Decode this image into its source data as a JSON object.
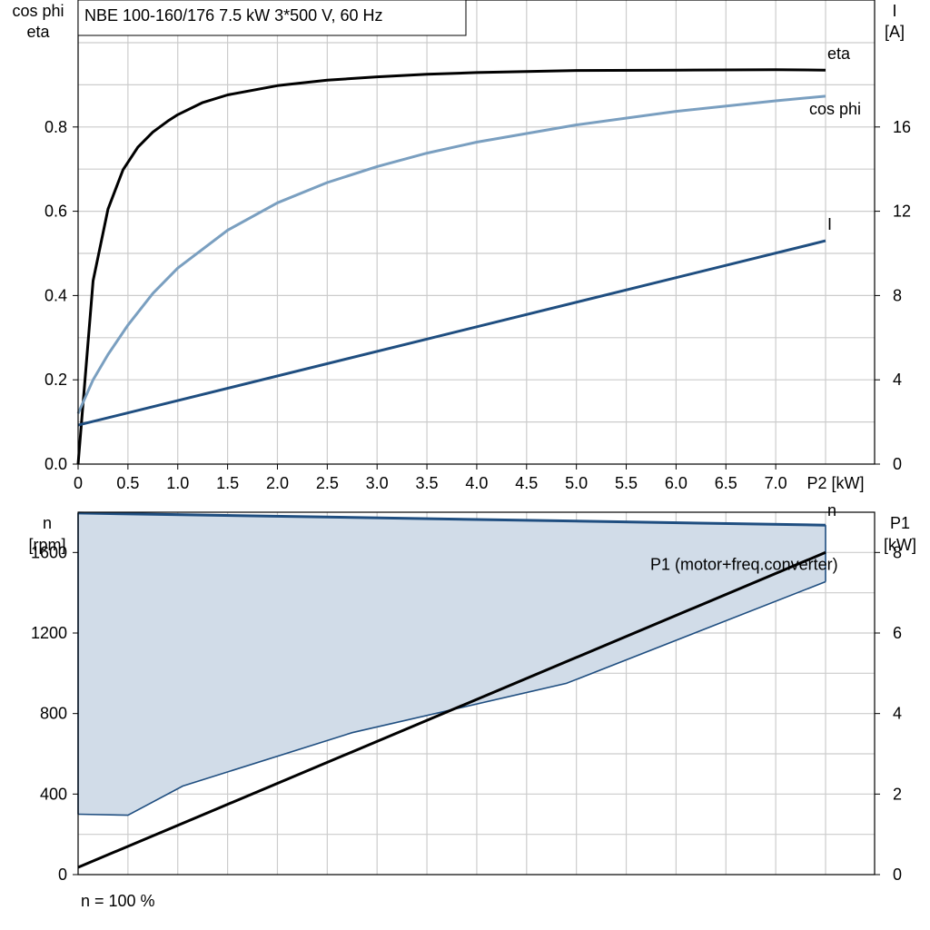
{
  "chart_data": [
    {
      "type": "line",
      "title": "NBE 100-160/176   7.5 kW   3*500 V, 60 Hz",
      "xlabel": "P2 [kW]",
      "y_left_label": [
        "cos phi",
        "eta"
      ],
      "y_right_label": [
        "I",
        "[A]"
      ],
      "xlim": [
        0,
        7.5
      ],
      "ylim_left": [
        0,
        1.0
      ],
      "ylim_right": [
        0,
        20
      ],
      "x_ticks": [
        "0",
        "0.5",
        "1.0",
        "1.5",
        "2.0",
        "2.5",
        "3.0",
        "3.5",
        "4.0",
        "4.5",
        "5.0",
        "5.5",
        "6.0",
        "6.5",
        "7.0"
      ],
      "y_ticks_left": [
        "0.0",
        "0.2",
        "0.4",
        "0.6",
        "0.8"
      ],
      "y_ticks_right": [
        "0",
        "4",
        "8",
        "12",
        "16"
      ],
      "grid": true,
      "series": [
        {
          "name": "eta",
          "axis": "left",
          "color": "#000000",
          "x": [
            0,
            0.15,
            0.3,
            0.45,
            0.6,
            0.75,
            0.9,
            1.0,
            1.25,
            1.5,
            2.0,
            2.5,
            3.0,
            3.5,
            4.0,
            5.0,
            6.0,
            7.0,
            7.5
          ],
          "y": [
            0,
            0.435,
            0.605,
            0.698,
            0.752,
            0.788,
            0.814,
            0.829,
            0.858,
            0.876,
            0.898,
            0.911,
            0.919,
            0.925,
            0.929,
            0.934,
            0.935,
            0.936,
            0.935
          ]
        },
        {
          "name": "cos phi",
          "axis": "left",
          "color": "#7a9fc0",
          "x": [
            0,
            0.15,
            0.3,
            0.5,
            0.75,
            1.0,
            1.5,
            2.0,
            2.5,
            3.0,
            3.5,
            4.0,
            5.0,
            6.0,
            7.0,
            7.5
          ],
          "y": [
            0.12,
            0.2,
            0.26,
            0.33,
            0.405,
            0.465,
            0.555,
            0.62,
            0.668,
            0.706,
            0.738,
            0.764,
            0.805,
            0.837,
            0.862,
            0.873
          ]
        },
        {
          "name": "I",
          "axis": "right",
          "color": "#1f4e80",
          "x": [
            0,
            7.5
          ],
          "y": [
            1.85,
            10.6
          ]
        }
      ]
    },
    {
      "type": "area",
      "xlim": [
        0,
        7.5
      ],
      "ylim_left": [
        0,
        1800
      ],
      "ylim_right": [
        0,
        9
      ],
      "y_left_label": [
        "n",
        "[rpm]"
      ],
      "y_right_label": [
        "P1",
        "[kW]"
      ],
      "y_ticks_left": [
        "0",
        "400",
        "800",
        "1200",
        "1600"
      ],
      "y_ticks_right": [
        "0",
        "2",
        "4",
        "6",
        "8"
      ],
      "grid": true,
      "footnote": "n = 100 %",
      "series": [
        {
          "name": "n",
          "axis": "left",
          "color": "#1f4e80",
          "x": [
            0,
            7.5
          ],
          "y": [
            1796,
            1736
          ]
        },
        {
          "name": "",
          "axis": "left",
          "color": "#1f4e80",
          "x": [
            0,
            0.5,
            1.05,
            2.75,
            4.9,
            7.5
          ],
          "y": [
            300,
            295,
            440,
            705,
            950,
            1455
          ]
        },
        {
          "name": "P1 (motor+freq.converter)",
          "axis": "right",
          "color": "#000000",
          "x": [
            0,
            7.5
          ],
          "y": [
            0.18,
            8.0
          ]
        }
      ],
      "fill_color": "#d1dce8"
    }
  ]
}
